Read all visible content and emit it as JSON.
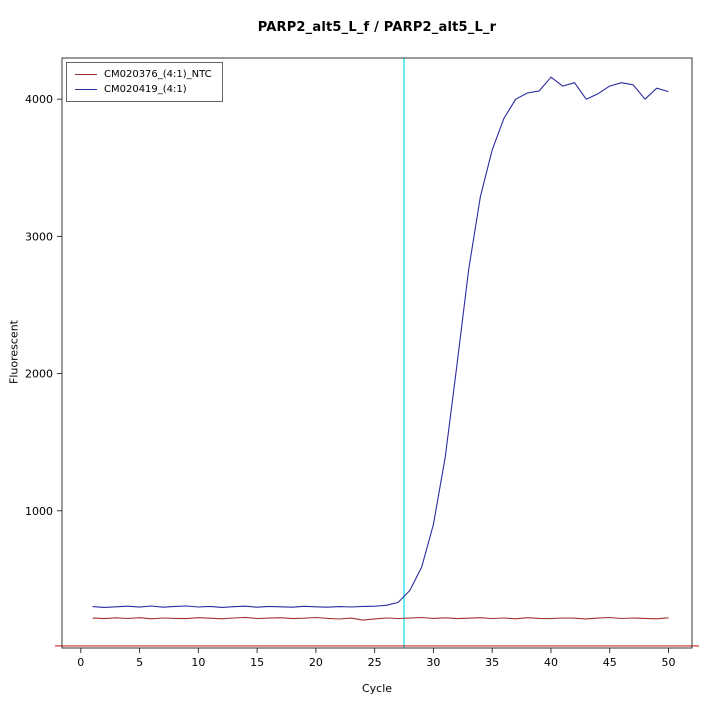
{
  "chart_data": {
    "type": "line",
    "title": "PARP2_alt5_L_f / PARP2_alt5_L_r",
    "xlabel": "Cycle",
    "ylabel": "Fluorescent",
    "xlim": [
      -1.6,
      52
    ],
    "ylim": [
      0,
      4300
    ],
    "x_ticks": [
      0,
      5,
      10,
      15,
      20,
      25,
      30,
      35,
      40,
      45,
      50
    ],
    "y_ticks": [
      1000,
      2000,
      3000,
      4000
    ],
    "grid": false,
    "legend_position": "top-left",
    "threshold_cycle_line": {
      "x": 27.5,
      "color": "#00e0e8"
    },
    "baseline_line": {
      "y": 15,
      "color": "#cc2a2a"
    },
    "x": [
      1,
      2,
      3,
      4,
      5,
      6,
      7,
      8,
      9,
      10,
      11,
      12,
      13,
      14,
      15,
      16,
      17,
      18,
      19,
      20,
      21,
      22,
      23,
      24,
      25,
      26,
      27,
      28,
      29,
      30,
      31,
      32,
      33,
      34,
      35,
      36,
      37,
      38,
      39,
      40,
      41,
      42,
      43,
      44,
      45,
      46,
      47,
      48,
      49,
      50
    ],
    "series": [
      {
        "name": "CM020376_(4:1)_NTC",
        "color": "#a03434",
        "values": [
          218,
          214,
          220,
          215,
          221,
          213,
          219,
          216,
          214,
          221,
          217,
          213,
          219,
          223,
          215,
          218,
          221,
          214,
          217,
          222,
          216,
          211,
          218,
          203,
          212,
          219,
          215,
          218,
          222,
          216,
          220,
          214,
          217,
          221,
          215,
          219,
          213,
          221,
          216,
          214,
          219,
          217,
          212,
          218,
          222,
          215,
          219,
          216,
          213,
          220
        ]
      },
      {
        "name": "CM020419_(4:1)",
        "color": "#2b2b9e",
        "values": [
          302,
          296,
          300,
          305,
          298,
          306,
          297,
          303,
          306,
          299,
          303,
          296,
          301,
          305,
          297,
          303,
          300,
          297,
          304,
          300,
          297,
          302,
          299,
          303,
          305,
          311,
          332,
          420,
          590,
          900,
          1390,
          2060,
          2760,
          3290,
          3630,
          3860,
          4000,
          4045,
          4060,
          4160,
          4095,
          4120,
          4000,
          4040,
          4095,
          4120,
          4105,
          4000,
          4080,
          4055
        ]
      }
    ]
  }
}
